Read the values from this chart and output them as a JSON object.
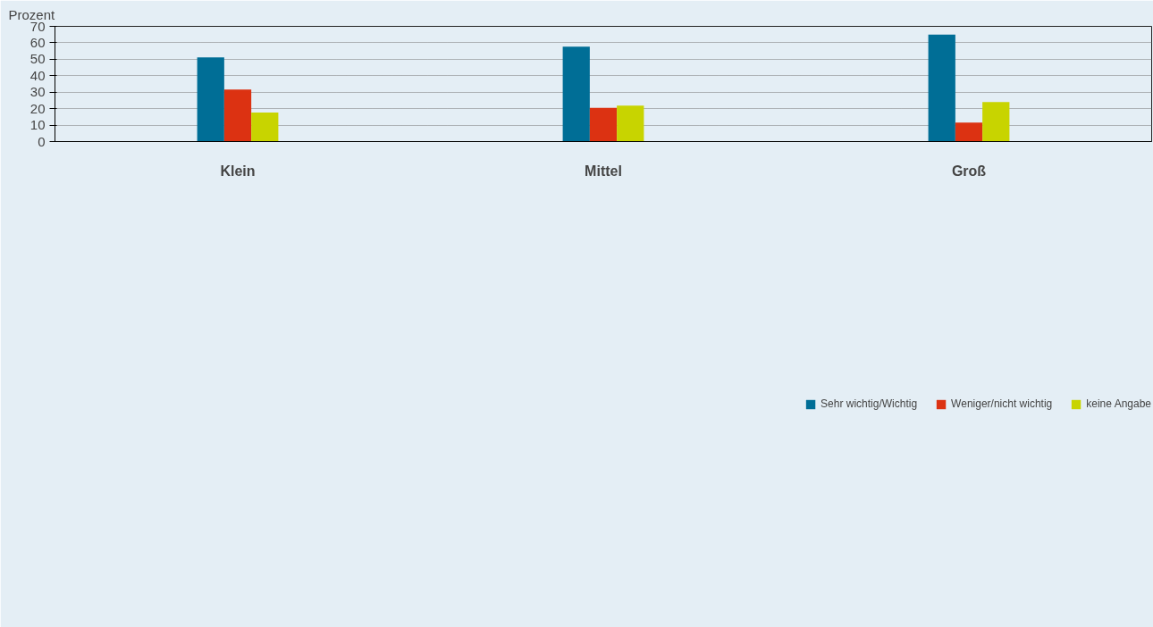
{
  "chart_data": {
    "type": "bar",
    "ylabel": "Prozent",
    "categories": [
      "Klein",
      "Mittel",
      "Groß"
    ],
    "series": [
      {
        "name": "Sehr wichtig/Wichtig",
        "color": "#006e96",
        "values": [
          51.1,
          57.7,
          65.0
        ]
      },
      {
        "name": "Weniger/nicht wichtig",
        "color": "#dc3212",
        "values": [
          31.6,
          20.5,
          11.5
        ]
      },
      {
        "name": "keine Angabe",
        "color": "#c8d400",
        "values": [
          17.7,
          21.9,
          24.0
        ]
      }
    ],
    "ylim": [
      0,
      70
    ],
    "yticks": [
      0,
      10,
      20,
      30,
      40,
      50,
      60,
      70
    ],
    "grid": "y",
    "legend": "bottom"
  }
}
